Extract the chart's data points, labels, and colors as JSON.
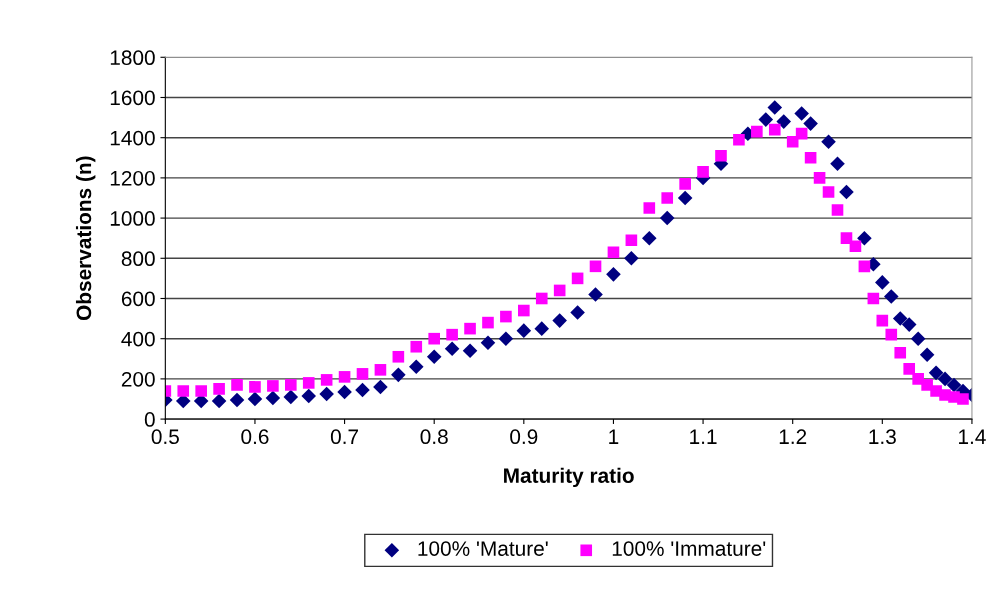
{
  "chart_data": {
    "type": "scatter",
    "xlabel": "Maturity ratio",
    "ylabel": "Observations (n)",
    "xlim": [
      0.5,
      1.4
    ],
    "xticks": [
      0.5,
      0.6,
      0.7,
      0.8,
      0.9,
      1,
      1.1,
      1.2,
      1.3,
      1.4
    ],
    "ylim": [
      0,
      1800
    ],
    "yticks": [
      0,
      200,
      400,
      600,
      800,
      1000,
      1200,
      1400,
      1600,
      1800
    ],
    "grid": "y",
    "legend": "bottom",
    "series": [
      {
        "name": "100% 'Mature'",
        "color": "#000080",
        "marker": "diamond",
        "x": [
          0.5,
          0.52,
          0.54,
          0.56,
          0.58,
          0.6,
          0.62,
          0.64,
          0.66,
          0.68,
          0.7,
          0.72,
          0.74,
          0.76,
          0.78,
          0.8,
          0.82,
          0.84,
          0.86,
          0.88,
          0.9,
          0.92,
          0.94,
          0.96,
          0.98,
          1.0,
          1.02,
          1.04,
          1.06,
          1.08,
          1.1,
          1.12,
          1.15,
          1.17,
          1.18,
          1.19,
          1.21,
          1.22,
          1.24,
          1.25,
          1.26,
          1.28,
          1.29,
          1.3,
          1.31,
          1.32,
          1.33,
          1.34,
          1.35,
          1.36,
          1.37,
          1.38,
          1.39,
          1.4
        ],
        "values": [
          95,
          90,
          90,
          90,
          95,
          100,
          105,
          110,
          115,
          125,
          135,
          145,
          160,
          220,
          260,
          310,
          350,
          340,
          380,
          400,
          440,
          450,
          490,
          530,
          620,
          720,
          800,
          900,
          1000,
          1100,
          1200,
          1270,
          1420,
          1490,
          1550,
          1480,
          1520,
          1470,
          1380,
          1270,
          1130,
          900,
          770,
          680,
          610,
          500,
          470,
          400,
          320,
          230,
          200,
          170,
          140,
          120
        ]
      },
      {
        "name": "100% 'Immature'",
        "color": "#ff00ff",
        "marker": "square",
        "x": [
          0.5,
          0.52,
          0.54,
          0.56,
          0.58,
          0.6,
          0.62,
          0.64,
          0.66,
          0.68,
          0.7,
          0.72,
          0.74,
          0.76,
          0.78,
          0.8,
          0.82,
          0.84,
          0.86,
          0.88,
          0.9,
          0.92,
          0.94,
          0.96,
          0.98,
          1.0,
          1.02,
          1.04,
          1.06,
          1.08,
          1.1,
          1.12,
          1.14,
          1.16,
          1.18,
          1.2,
          1.21,
          1.22,
          1.23,
          1.24,
          1.25,
          1.26,
          1.27,
          1.28,
          1.29,
          1.3,
          1.31,
          1.32,
          1.33,
          1.34,
          1.35,
          1.36,
          1.37,
          1.38,
          1.39
        ],
        "values": [
          140,
          140,
          140,
          150,
          170,
          160,
          165,
          170,
          180,
          195,
          210,
          225,
          245,
          310,
          360,
          400,
          420,
          450,
          480,
          510,
          540,
          600,
          640,
          700,
          760,
          830,
          890,
          1050,
          1100,
          1170,
          1230,
          1310,
          1390,
          1430,
          1440,
          1380,
          1420,
          1300,
          1200,
          1130,
          1040,
          900,
          860,
          760,
          600,
          490,
          420,
          330,
          250,
          200,
          170,
          140,
          120,
          110,
          100
        ]
      }
    ]
  }
}
